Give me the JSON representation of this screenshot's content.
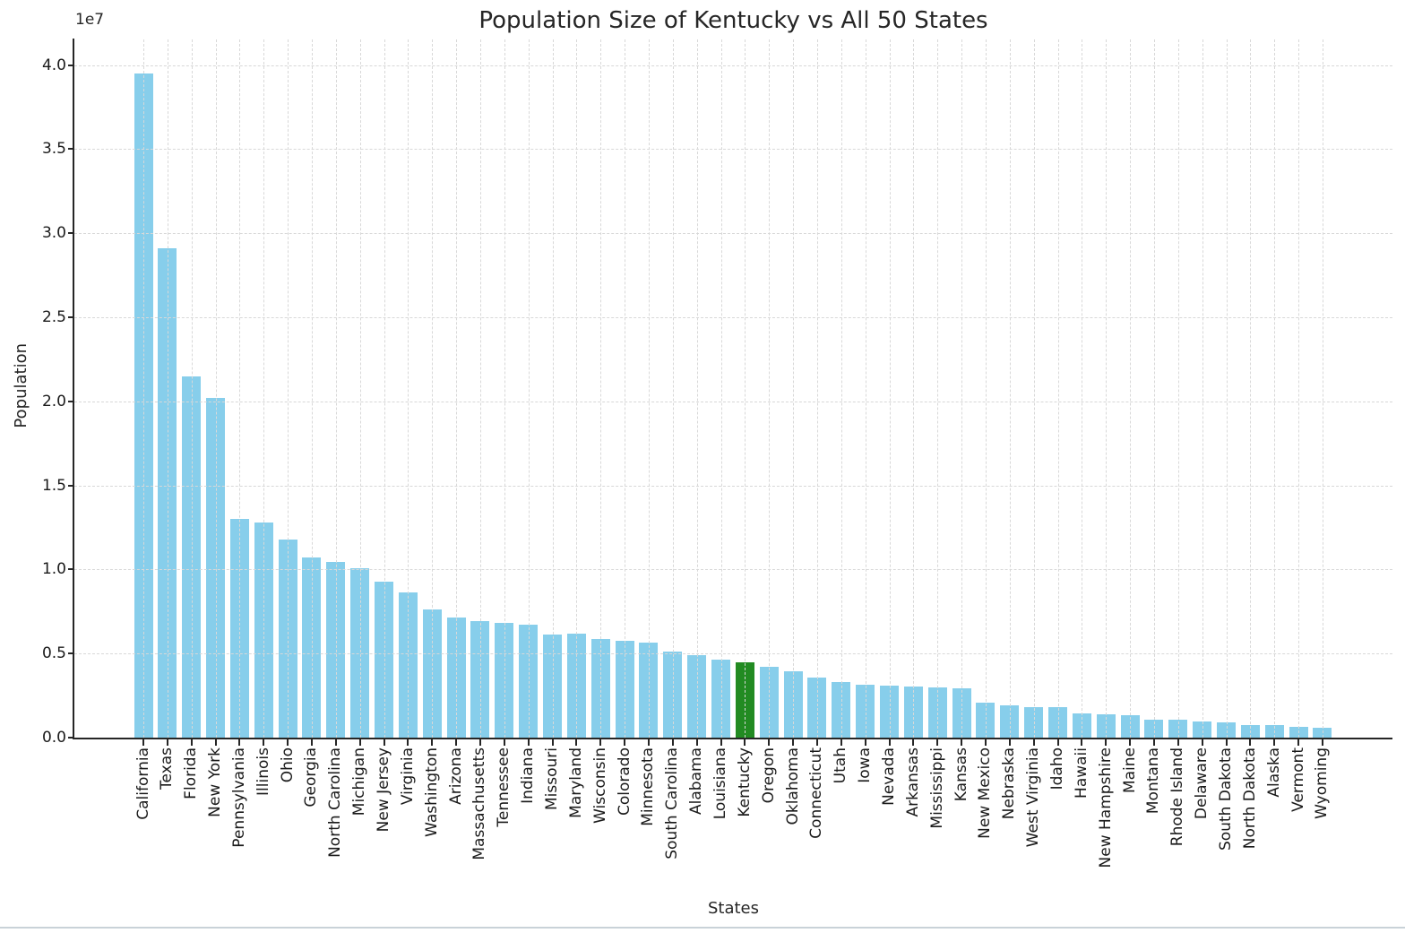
{
  "chart_data": {
    "type": "bar",
    "title": "Population Size of Kentucky vs All 50 States",
    "xlabel": "States",
    "ylabel": "Population",
    "y_offset_label": "1e7",
    "grid": true,
    "legend": false,
    "ylim": [
      0,
      41500000
    ],
    "ytick_labels": [
      "0.0",
      "0.5",
      "1.0",
      "1.5",
      "2.0",
      "2.5",
      "3.0",
      "3.5",
      "4.0"
    ],
    "bar_color": "#87CEEB",
    "highlight_state": "Kentucky",
    "highlight_index": 25,
    "highlight_color": "#228B22",
    "categories": [
      "California",
      "Texas",
      "Florida",
      "New York",
      "Pennsylvania",
      "Illinois",
      "Ohio",
      "Georgia",
      "North Carolina",
      "Michigan",
      "New Jersey",
      "Virginia",
      "Washington",
      "Arizona",
      "Massachusetts",
      "Tennessee",
      "Indiana",
      "Missouri",
      "Maryland",
      "Wisconsin",
      "Colorado",
      "Minnesota",
      "South Carolina",
      "Alabama",
      "Louisiana",
      "Kentucky",
      "Oregon",
      "Oklahoma",
      "Connecticut",
      "Utah",
      "Iowa",
      "Nevada",
      "Arkansas",
      "Mississippi",
      "Kansas",
      "New Mexico",
      "Nebraska",
      "West Virginia",
      "Idaho",
      "Hawaii",
      "New Hampshire",
      "Maine",
      "Montana",
      "Rhode Island",
      "Delaware",
      "South Dakota",
      "North Dakota",
      "Alaska",
      "Vermont",
      "Wyoming"
    ],
    "values": [
      39500000,
      29100000,
      21500000,
      20200000,
      13000000,
      12800000,
      11800000,
      10700000,
      10440000,
      10080000,
      9290000,
      8630000,
      7610000,
      7150000,
      6950000,
      6830000,
      6730000,
      6150000,
      6170000,
      5880000,
      5760000,
      5640000,
      5120000,
      4900000,
      4650000,
      4470000,
      4220000,
      3960000,
      3570000,
      3280000,
      3160000,
      3080000,
      3020000,
      2980000,
      2910000,
      2100000,
      1930000,
      1790000,
      1790000,
      1460000,
      1360000,
      1340000,
      1070000,
      1060000,
      980000,
      890000,
      770000,
      730000,
      625000,
      580000
    ]
  }
}
